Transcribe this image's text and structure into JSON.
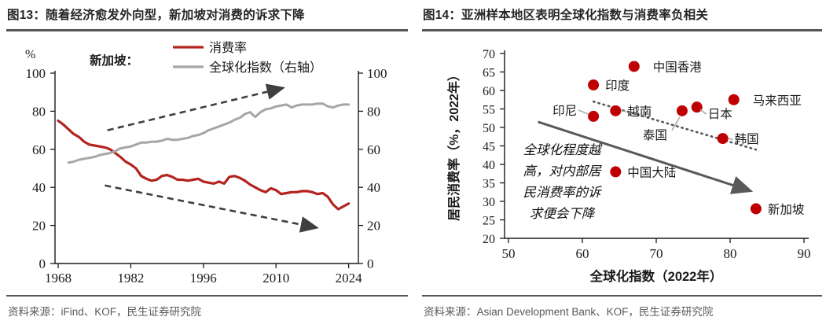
{
  "panels": {
    "left": {
      "title": "图13：随着经济愈发外向型，新加坡对消费的诉求下降",
      "source": "资料来源：iFind、KOF，民生证券研究院"
    },
    "right": {
      "title": "图14：亚洲样本地区表明全球化指数与消费率负相关",
      "source": "资料来源：Asian Development Bank、KOF，民生证券研究院"
    }
  },
  "chart_data": [
    {
      "type": "line",
      "title": "图13：随着经济愈发外向型，新加坡对消费的诉求下降",
      "region_label": "新加坡：",
      "unit_label": "%",
      "xlim": [
        1968,
        2025
      ],
      "ylim_left": [
        0,
        100
      ],
      "ylim_right": [
        0,
        100
      ],
      "x_ticks": [
        1968,
        1982,
        1996,
        2010,
        2024
      ],
      "y_ticks_left": [
        0,
        20,
        40,
        60,
        80,
        100
      ],
      "y_ticks_right": [
        0,
        20,
        40,
        60,
        80,
        100
      ],
      "series": [
        {
          "name": "消费率",
          "color": "#b3241f",
          "axis": "left",
          "x_start": 1968,
          "values": [
            75,
            73,
            70.5,
            68,
            66.5,
            64,
            62.5,
            62,
            61.5,
            61,
            60,
            58,
            56,
            53.5,
            52,
            50,
            46,
            44.5,
            43.5,
            44,
            46,
            46.5,
            45.5,
            44,
            44,
            43.5,
            44,
            44.5,
            43,
            42.5,
            42,
            43,
            42,
            45.5,
            46,
            45,
            43.5,
            41.5,
            40,
            38.5,
            37.5,
            39.5,
            38.5,
            36.5,
            37,
            37.5,
            37.5,
            38,
            38,
            37.5,
            36.5,
            37,
            35,
            31,
            28.5,
            30,
            31.5
          ]
        },
        {
          "name": "全球化指数（右轴）",
          "color": "#a6a6a6",
          "axis": "right",
          "x_start": 1970,
          "values": [
            53,
            53.5,
            54.5,
            55,
            55.5,
            56,
            57,
            57.5,
            58,
            59,
            60.5,
            61,
            61.5,
            62.5,
            63.5,
            63.5,
            64,
            64,
            64.5,
            65.5,
            65,
            65,
            65.5,
            66,
            67,
            67.5,
            68.5,
            70,
            71,
            72,
            73,
            74,
            75.5,
            76.5,
            78.5,
            79.5,
            77,
            79.5,
            81,
            81.5,
            82.5,
            83,
            83.5,
            82,
            83,
            83.5,
            83.5,
            83.5,
            84,
            84,
            82.5,
            82,
            83,
            83.5,
            83.5
          ]
        }
      ],
      "trend_arrows": [
        {
          "direction": "up",
          "from": [
            1977.5,
            70
          ],
          "to": [
            2011,
            92
          ]
        },
        {
          "direction": "down",
          "from": [
            1977,
            41
          ],
          "to": [
            2017.5,
            19
          ]
        }
      ],
      "arrow_color": "#3f3f3f"
    },
    {
      "type": "scatter",
      "title": "图14：亚洲样本地区表明全球化指数与消费率负相关",
      "xlabel": "全球化指数（2022年）",
      "ylabel": "居民消费率（%，2022年）",
      "xlim": [
        50,
        90
      ],
      "ylim": [
        20,
        70
      ],
      "x_ticks": [
        50,
        60,
        70,
        80,
        90
      ],
      "y_ticks": [
        20,
        25,
        30,
        35,
        40,
        45,
        50,
        55,
        60,
        65,
        70
      ],
      "point_color": "#c00000",
      "points": [
        {
          "label": "印尼",
          "x": 61.5,
          "y": 53,
          "label_side": "left",
          "leader": true
        },
        {
          "label": "印度",
          "x": 61.5,
          "y": 61.5,
          "label_side": "right",
          "leader": false
        },
        {
          "label": "中国香港",
          "x": 67,
          "y": 66.5,
          "label_side": "right-far",
          "leader": false
        },
        {
          "label": "越南",
          "x": 64.5,
          "y": 54.5,
          "label_side": "right",
          "leader": true
        },
        {
          "label": "泰国",
          "x": 73.5,
          "y": 54.5,
          "label_side": "below",
          "leader": true
        },
        {
          "label": "日本",
          "x": 75.5,
          "y": 55.5,
          "label_side": "right-below",
          "leader": true
        },
        {
          "label": "马来西亚",
          "x": 80.5,
          "y": 57.5,
          "label_side": "right-far",
          "leader": false
        },
        {
          "label": "韩国",
          "x": 79,
          "y": 47,
          "label_side": "right",
          "leader": true
        },
        {
          "label": "中国大陆",
          "x": 64.5,
          "y": 38,
          "label_side": "right",
          "leader": false
        },
        {
          "label": "新加坡",
          "x": 83.5,
          "y": 28,
          "label_side": "right",
          "leader": false
        }
      ],
      "trendline_dotted": {
        "from": [
          61.5,
          57
        ],
        "to": [
          83.5,
          44
        ]
      },
      "arrow_solid": {
        "from": [
          54,
          51.5
        ],
        "to": [
          82.5,
          33
        ]
      },
      "annotation": {
        "lines": [
          "全球化程度越",
          "高，对内部居",
          "民消费率的诉",
          "求便会下降"
        ]
      },
      "line_color": "#595959"
    }
  ]
}
